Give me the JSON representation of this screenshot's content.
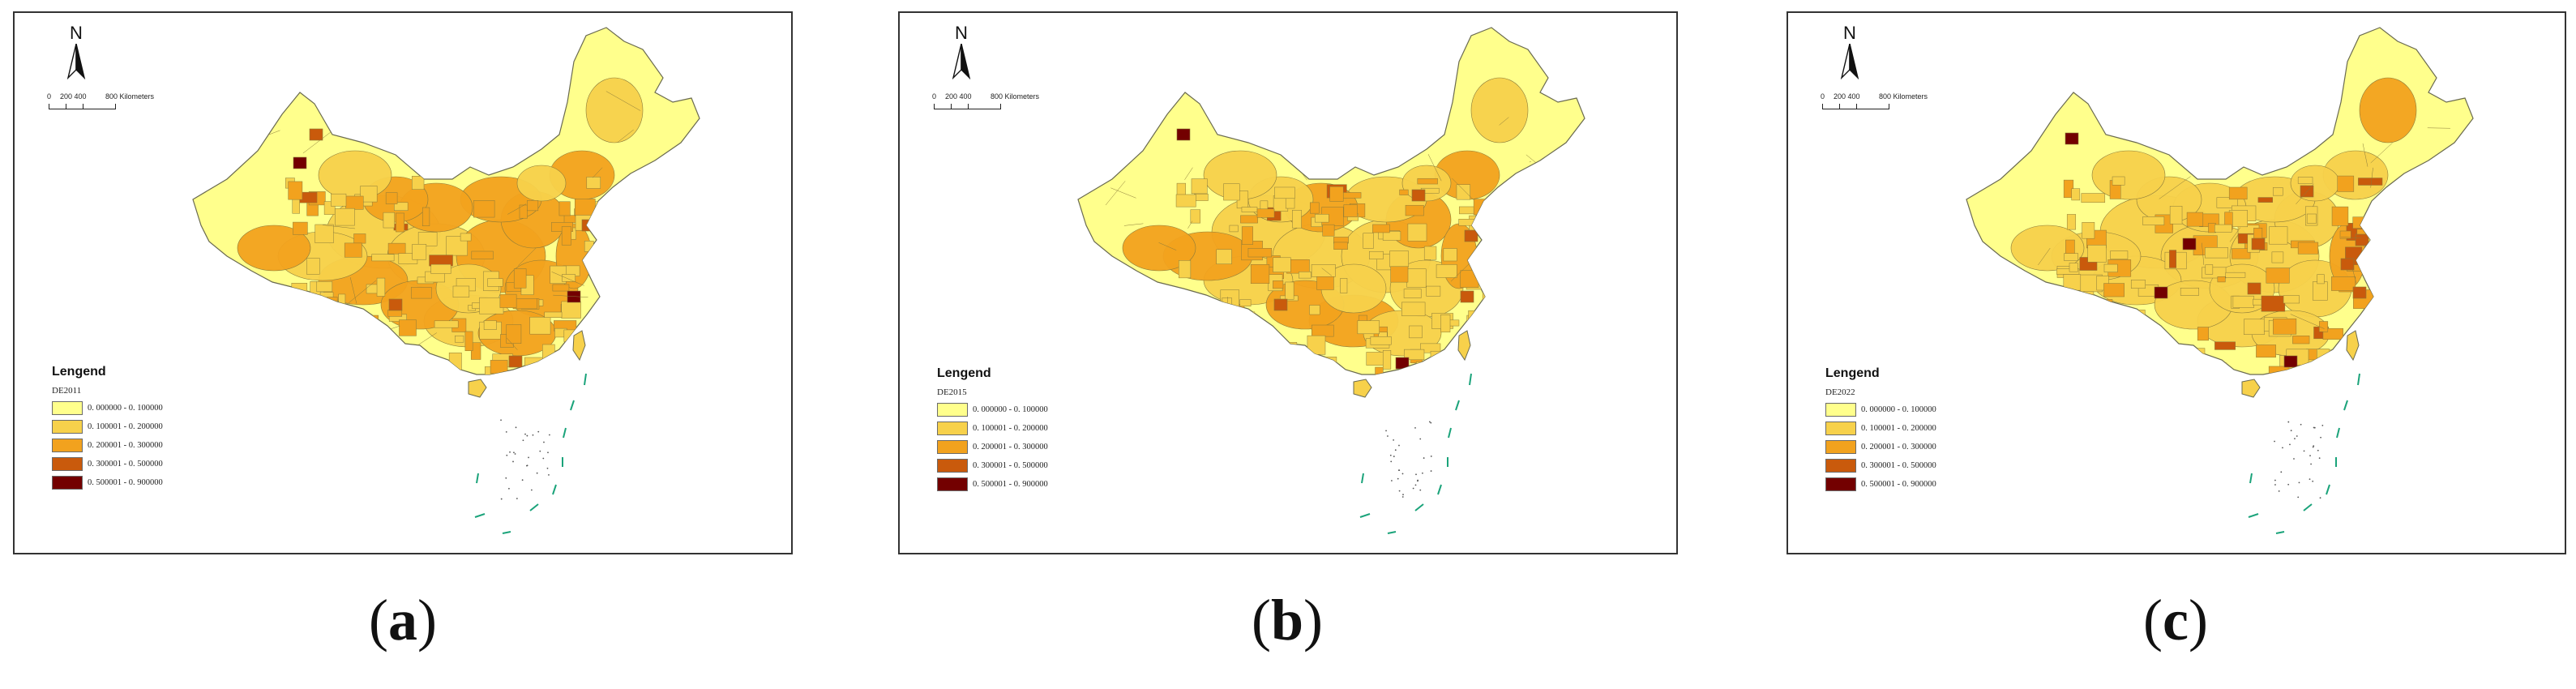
{
  "legend_title": "Lengend",
  "north_label": "N",
  "scale_labels": [
    "0",
    "200 400",
    "800 Kilometers"
  ],
  "classes": [
    {
      "range": "0. 000000  -  0. 100000",
      "color": "#FFFF8C"
    },
    {
      "range": "0. 100001  -  0. 200000",
      "color": "#F7D14B"
    },
    {
      "range": "0. 200001  -  0. 300000",
      "color": "#F2A21E"
    },
    {
      "range": "0. 300001  -  0. 500000",
      "color": "#C95A0C"
    },
    {
      "range": "0. 500001  -  0. 900000",
      "color": "#730000"
    }
  ],
  "panels": [
    {
      "variable": "DE2011",
      "label_open": "(",
      "label_letter": "a",
      "label_close": ")"
    },
    {
      "variable": "DE2015",
      "label_open": "(",
      "label_letter": "b",
      "label_close": ")"
    },
    {
      "variable": "DE2022",
      "label_open": "(",
      "label_letter": "c",
      "label_close": ")"
    }
  ],
  "colors": {
    "border": "#333333",
    "region_stroke": "#8a7a3a",
    "coastline": "#1aa37a"
  }
}
